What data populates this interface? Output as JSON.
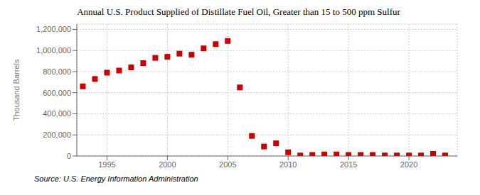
{
  "chart_data": {
    "type": "scatter",
    "title": "Annual U.S. Product Supplied of Distillate Fuel Oil, Greater than 15 to 500 ppm Sulfur",
    "y_label": "Thousand Barrels",
    "annotations": [
      "Source: U.S. Energy Information Administration"
    ],
    "x": [
      1993,
      1994,
      1995,
      1996,
      1997,
      1998,
      1999,
      2000,
      2001,
      2002,
      2003,
      2004,
      2005,
      2006,
      2007,
      2008,
      2009,
      2010,
      2011,
      2012,
      2013,
      2014,
      2015,
      2016,
      2017,
      2018,
      2019,
      2020,
      2021,
      2022,
      2023
    ],
    "values": [
      660000,
      730000,
      790000,
      810000,
      840000,
      880000,
      930000,
      940000,
      970000,
      960000,
      1020000,
      1060000,
      1090000,
      650000,
      190000,
      90000,
      120000,
      35000,
      5000,
      10000,
      15000,
      15000,
      10000,
      10000,
      10000,
      5000,
      5000,
      5000,
      5000,
      20000,
      5000
    ],
    "color": "#cc0000",
    "marker": "square",
    "xlim": [
      1992.5,
      2024
    ],
    "ylim": [
      0,
      1250000
    ],
    "xticks": [
      1995,
      2000,
      2005,
      2010,
      2015,
      2020
    ],
    "yticks": [
      0,
      {
        "value": 200000,
        "label": "200,000"
      },
      {
        "value": 400000,
        "label": "400,000"
      },
      {
        "value": 600000,
        "label": "600,000"
      },
      {
        "value": 800000,
        "label": "800,000"
      },
      {
        "value": 1000000,
        "label": "1,000,000"
      },
      {
        "value": 1200000,
        "label": "1,200,000"
      }
    ],
    "grid": true
  }
}
